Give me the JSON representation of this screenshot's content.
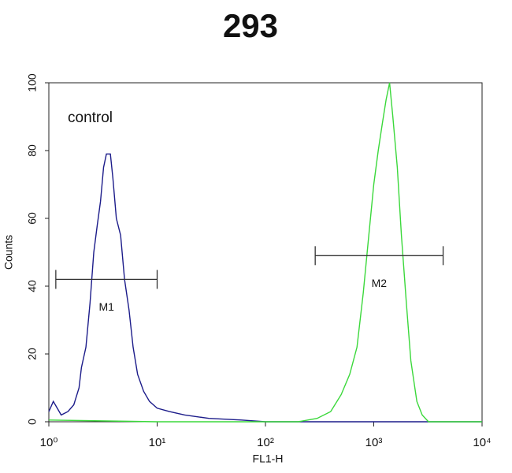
{
  "chart_data": {
    "type": "line",
    "title": "293",
    "x_label": "FL1-H",
    "y_label": "Counts",
    "annotation": "control",
    "xscale": "log",
    "xlim": [
      1,
      10000
    ],
    "xticks": [
      {
        "value": 1,
        "label": "10⁰"
      },
      {
        "value": 10,
        "label": "10¹"
      },
      {
        "value": 100,
        "label": "10²"
      },
      {
        "value": 1000,
        "label": "10³"
      },
      {
        "value": 10000,
        "label": "10⁴"
      }
    ],
    "ylim": [
      0,
      100
    ],
    "yticks": [
      0,
      20,
      40,
      60,
      80,
      100
    ],
    "series": [
      {
        "color": "#1c1c8a",
        "x": [
          1.0,
          1.1,
          1.3,
          1.5,
          1.7,
          1.9,
          2.0,
          2.2,
          2.4,
          2.6,
          2.8,
          3.0,
          3.2,
          3.4,
          3.7,
          3.9,
          4.2,
          4.6,
          5.0,
          5.5,
          6.0,
          6.6,
          7.5,
          8.5,
          10,
          13,
          18,
          30,
          60,
          100,
          1000,
          10000
        ],
        "values": [
          3,
          6,
          2,
          3,
          5,
          10,
          16,
          22,
          35,
          50,
          58,
          65,
          75,
          79,
          79,
          72,
          60,
          55,
          42,
          33,
          22,
          14,
          9,
          6,
          4,
          3,
          2,
          1,
          0.5,
          0,
          0,
          0
        ]
      },
      {
        "color": "#3bd83b",
        "x": [
          1,
          10,
          100,
          200,
          300,
          400,
          500,
          600,
          700,
          800,
          900,
          1000,
          1100,
          1200,
          1300,
          1400,
          1500,
          1650,
          1800,
          2000,
          2200,
          2500,
          2800,
          3200,
          10000
        ],
        "values": [
          0.5,
          0,
          0,
          0,
          1,
          3,
          8,
          14,
          22,
          38,
          55,
          70,
          80,
          88,
          95,
          100,
          90,
          75,
          55,
          35,
          18,
          6,
          2,
          0,
          0
        ]
      }
    ],
    "markers": [
      {
        "label": "M1",
        "range": [
          1.16,
          10
        ],
        "y": 42
      },
      {
        "label": "M2",
        "range": [
          288,
          4370
        ],
        "y": 49
      }
    ]
  }
}
